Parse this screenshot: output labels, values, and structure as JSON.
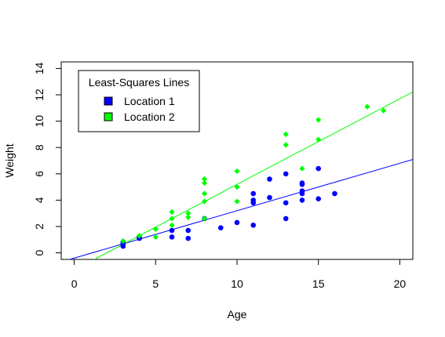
{
  "chart_data": {
    "type": "scatter",
    "xlabel": "Age",
    "ylabel": "Weight",
    "xlim": [
      -0.8,
      20.8
    ],
    "ylim": [
      -0.5,
      14.5
    ],
    "x_ticks": [
      0,
      5,
      10,
      15,
      20
    ],
    "y_ticks": [
      0,
      2,
      4,
      6,
      8,
      10,
      12,
      14
    ],
    "legend": {
      "title": "Least-Squares Lines",
      "position": "top-left"
    },
    "series": [
      {
        "name": "Location 1",
        "color": "#0000ff",
        "marker": "circle",
        "line": {
          "slope": 0.36,
          "intercept": -0.4
        },
        "points": [
          [
            3,
            0.5
          ],
          [
            3,
            0.7
          ],
          [
            3,
            0.8
          ],
          [
            4,
            1.1
          ],
          [
            4,
            1.2
          ],
          [
            6,
            1.2
          ],
          [
            6,
            1.7
          ],
          [
            7,
            1.1
          ],
          [
            7,
            1.7
          ],
          [
            8,
            2.6
          ],
          [
            9,
            1.9
          ],
          [
            10,
            2.3
          ],
          [
            11,
            2.1
          ],
          [
            11,
            3.8
          ],
          [
            11,
            4.0
          ],
          [
            11,
            4.5
          ],
          [
            12,
            4.2
          ],
          [
            12,
            5.6
          ],
          [
            13,
            2.6
          ],
          [
            13,
            3.8
          ],
          [
            13,
            6.0
          ],
          [
            14,
            4.0
          ],
          [
            14,
            4.5
          ],
          [
            14,
            4.7
          ],
          [
            14,
            5.2
          ],
          [
            14,
            5.3
          ],
          [
            15,
            4.1
          ],
          [
            15,
            6.4
          ],
          [
            16,
            4.5
          ]
        ]
      },
      {
        "name": "Location 2",
        "color": "#00ff00",
        "marker": "diamond",
        "line": {
          "slope": 0.65,
          "intercept": -1.3
        },
        "points": [
          [
            3,
            0.9
          ],
          [
            4,
            1.3
          ],
          [
            5,
            1.2
          ],
          [
            5,
            1.8
          ],
          [
            6,
            2.1
          ],
          [
            6,
            2.6
          ],
          [
            6,
            3.1
          ],
          [
            7,
            2.7
          ],
          [
            7,
            3.0
          ],
          [
            8,
            2.6
          ],
          [
            8,
            3.9
          ],
          [
            8,
            4.5
          ],
          [
            8,
            5.3
          ],
          [
            8,
            5.6
          ],
          [
            10,
            3.9
          ],
          [
            10,
            5.0
          ],
          [
            10,
            6.2
          ],
          [
            13,
            8.2
          ],
          [
            13,
            9.0
          ],
          [
            14,
            6.4
          ],
          [
            15,
            8.6
          ],
          [
            15,
            10.1
          ],
          [
            18,
            11.1
          ],
          [
            19,
            10.8
          ]
        ]
      }
    ]
  }
}
